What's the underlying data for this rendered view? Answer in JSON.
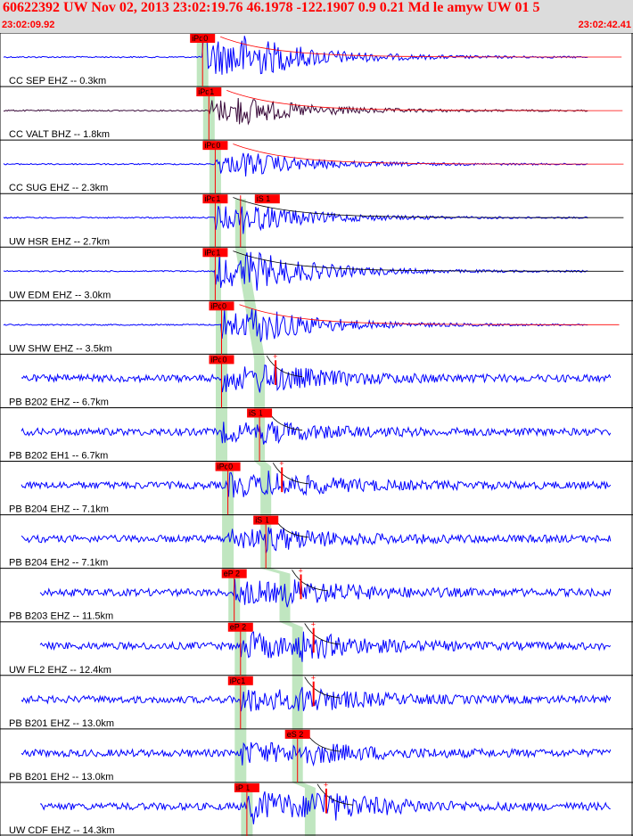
{
  "header": {
    "title": "60622392 UW Nov 02, 2013 23:02:19.76   46.1978 -122.1907  0.9 0.21 Md le amyw UW 01   5",
    "start_time": "23:02:09.92",
    "end_time": "23:02:42.41"
  },
  "colors": {
    "trace": "#0000ff",
    "trace_alt": "#3a0a3a",
    "pick_box": "#ff0000",
    "coda": "#ff0000",
    "travel_band": "#b9e3b9",
    "header_bg": "#dcdcdc",
    "title_text": "#ff0000"
  },
  "chart_data": {
    "type": "line",
    "description_kind": "seismogram-record-section",
    "time_range": [
      "23:02:09.92",
      "23:02:42.41"
    ],
    "traces": [
      {
        "label": "CC SEP EHZ -- 0.3km",
        "distance_km": 0.3,
        "picks": [
          "iPd0"
        ],
        "p_time": 0.32,
        "s_time": null,
        "amp": 1.0,
        "color": "blue",
        "extra_red": false
      },
      {
        "label": "CC VALT BHZ -- 1.8km",
        "distance_km": 1.8,
        "picks": [
          "iPd1"
        ],
        "p_time": 0.33,
        "s_time": null,
        "amp": 0.55,
        "color": "dark",
        "extra_red": false
      },
      {
        "label": "CC SUG EHZ -- 2.3km",
        "distance_km": 2.3,
        "picks": [
          "iPd0"
        ],
        "p_time": 0.34,
        "s_time": null,
        "amp": 0.45,
        "color": "blue",
        "extra_red": false
      },
      {
        "label": "UW HSR EHZ -- 2.7km",
        "distance_km": 2.7,
        "picks": [
          "iPd1",
          "iS 1"
        ],
        "p_time": 0.34,
        "s_time": 0.38,
        "amp": 0.55,
        "color": "blue",
        "extra_red": false
      },
      {
        "label": "UW EDM EHZ -- 3.0km",
        "distance_km": 3.0,
        "picks": [
          "iPd1"
        ],
        "p_time": 0.34,
        "s_time": null,
        "amp": 0.8,
        "color": "blue",
        "extra_red": false
      },
      {
        "label": "UW SHW EHZ -- 3.5km",
        "distance_km": 3.5,
        "picks": [
          "iPc0"
        ],
        "p_time": 0.35,
        "s_time": null,
        "amp": 0.7,
        "color": "blue",
        "extra_red": false
      },
      {
        "label": "PB B202 EHZ -- 6.7km",
        "distance_km": 6.7,
        "picks": [
          "iPd0"
        ],
        "p_time": 0.35,
        "s_time": 0.41,
        "amp": 0.5,
        "color": "blue",
        "extra_red": true
      },
      {
        "label": "PB B202 EH1 -- 6.7km",
        "distance_km": 6.7,
        "picks": [
          "iS 1"
        ],
        "p_time": 0.35,
        "s_time": 0.41,
        "amp": 0.35,
        "color": "blue",
        "extra_red": false
      },
      {
        "label": "PB B204 EHZ -- 7.1km",
        "distance_km": 7.1,
        "picks": [
          "iPc0"
        ],
        "p_time": 0.36,
        "s_time": 0.42,
        "amp": 0.45,
        "color": "blue",
        "extra_red": true
      },
      {
        "label": "PB B204 EH2 -- 7.1km",
        "distance_km": 7.1,
        "picks": [
          "iS 1"
        ],
        "p_time": 0.36,
        "s_time": 0.42,
        "amp": 0.4,
        "color": "blue",
        "extra_red": false
      },
      {
        "label": "PB B203 EHZ -- 11.5km",
        "distance_km": 11.5,
        "picks": [
          "eP 2"
        ],
        "p_time": 0.37,
        "s_time": 0.45,
        "amp": 0.5,
        "color": "blue",
        "extra_red": true
      },
      {
        "label": "UW FL2 EHZ -- 12.4km",
        "distance_km": 12.4,
        "picks": [
          "eP 2"
        ],
        "p_time": 0.38,
        "s_time": 0.47,
        "amp": 0.55,
        "color": "blue",
        "extra_red": true
      },
      {
        "label": "PB B201 EHZ -- 13.0km",
        "distance_km": 13.0,
        "picks": [
          "iPc1"
        ],
        "p_time": 0.38,
        "s_time": 0.47,
        "amp": 0.5,
        "color": "blue",
        "extra_red": true
      },
      {
        "label": "PB B201 EH2 -- 13.0km",
        "distance_km": 13.0,
        "picks": [
          "eS 2"
        ],
        "p_time": 0.38,
        "s_time": 0.47,
        "amp": 0.45,
        "color": "blue",
        "extra_red": false
      },
      {
        "label": "UW CDF EHZ -- 14.3km",
        "distance_km": 14.3,
        "picks": [
          "iP 1"
        ],
        "p_time": 0.39,
        "s_time": 0.49,
        "amp": 0.7,
        "color": "blue",
        "extra_red": true
      }
    ]
  }
}
